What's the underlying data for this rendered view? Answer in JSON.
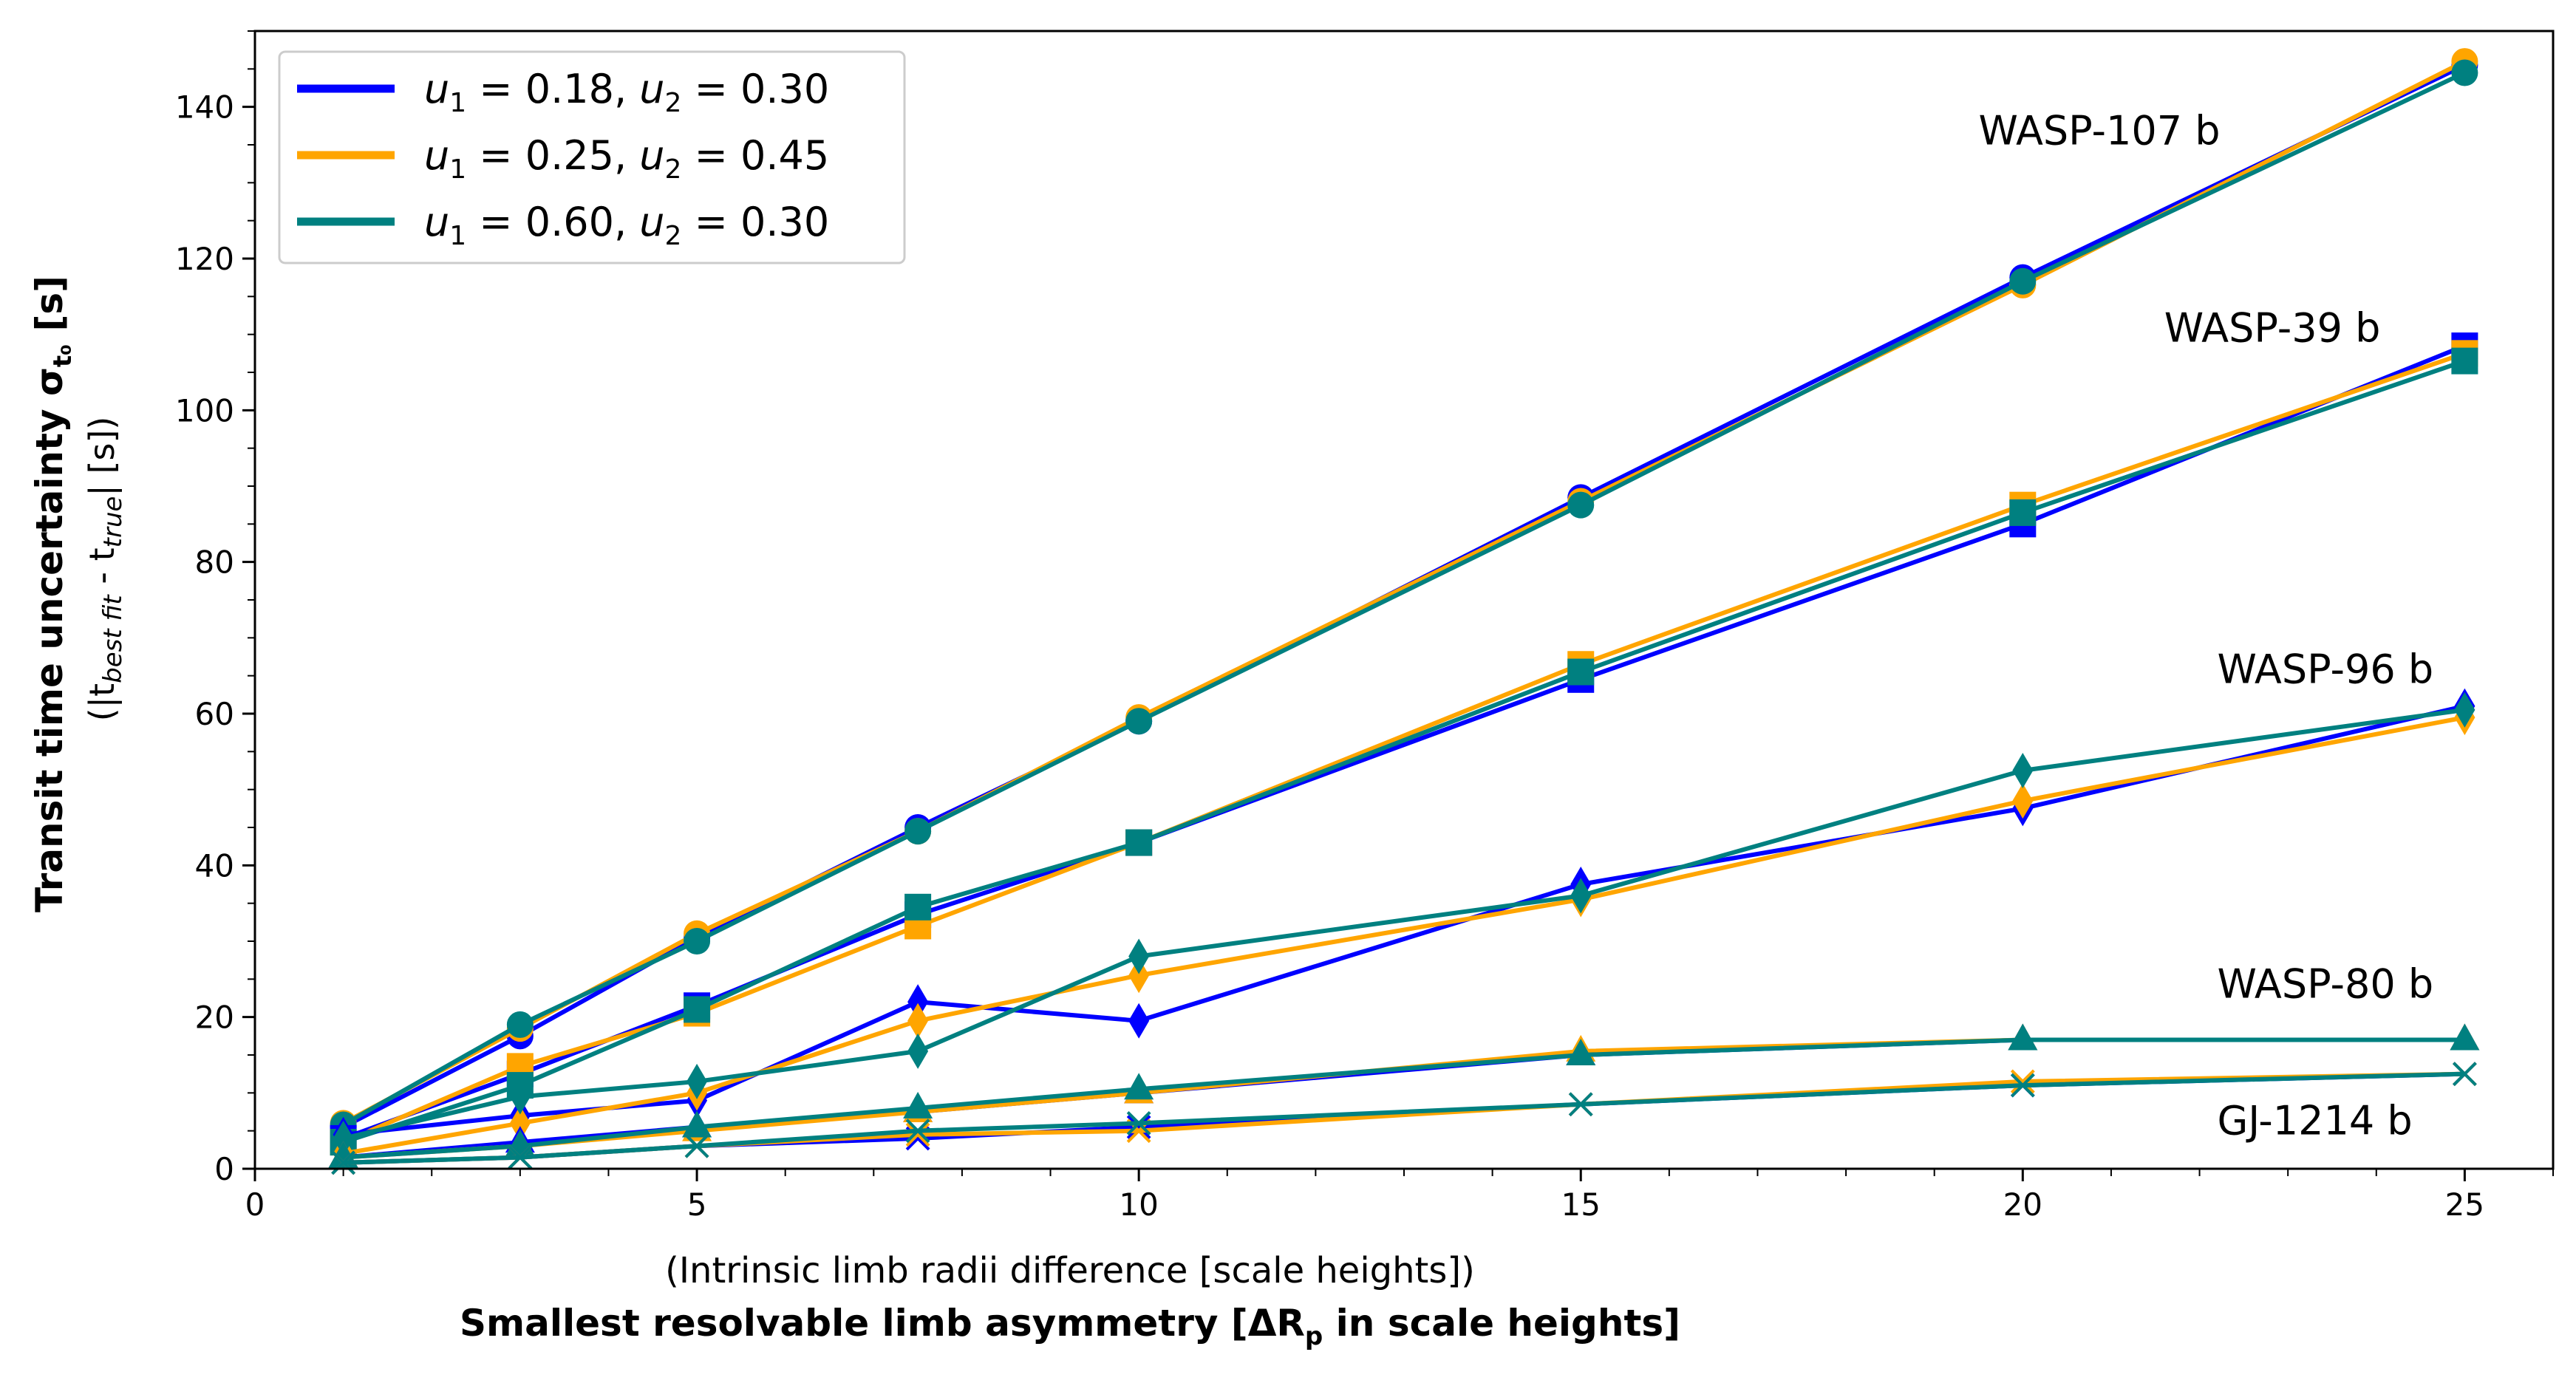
{
  "chart_data": {
    "type": "line",
    "xlim": [
      0,
      26
    ],
    "ylim": [
      0,
      150
    ],
    "xticks": [
      0,
      5,
      10,
      15,
      20,
      25
    ],
    "yticks": [
      0,
      20,
      40,
      60,
      80,
      100,
      120,
      140
    ],
    "grid": false,
    "xlabel": {
      "line1": "(Intrinsic limb radii difference [scale heights])",
      "line2_prefix": "Smallest resolvable limb asymmetry [ΔR",
      "line2_sub": "p",
      "line2_suffix": " in scale heights]"
    },
    "ylabel": {
      "line1_prefix": "Transit time uncertainty σ",
      "line1_sub": "t₀",
      "line1_suffix": " [s]",
      "line2_a": "(|t",
      "line2_sub1": "best fit",
      "line2_b": " - t",
      "line2_sub2": "true",
      "line2_c": "| [s])"
    },
    "legend": {
      "placement": "upper-left",
      "entries": [
        {
          "u1": "0.18",
          "u2": "0.30",
          "color": "#0000ff"
        },
        {
          "u1": "0.25",
          "u2": "0.45",
          "color": "#ffa500"
        },
        {
          "u1": "0.60",
          "u2": "0.30",
          "color": "#008080"
        }
      ]
    },
    "x": [
      1,
      3,
      5,
      7.5,
      10,
      15,
      20,
      25
    ],
    "planets": [
      {
        "name": "WASP-107 b",
        "marker": "circle",
        "series": [
          {
            "values": [
              5.5,
              17.5,
              30.5,
              45,
              59,
              88.5,
              117.5,
              145.5
            ]
          },
          {
            "values": [
              6,
              18.5,
              31,
              44.5,
              59.5,
              88,
              116.5,
              146
            ]
          },
          {
            "values": [
              5.8,
              19,
              30,
              44.5,
              59,
              87.5,
              117,
              144.5
            ]
          }
        ]
      },
      {
        "name": "WASP-39 b",
        "marker": "square",
        "series": [
          {
            "values": [
              4,
              12.5,
              21.5,
              33.5,
              43,
              64.5,
              85,
              108.5
            ]
          },
          {
            "values": [
              3.5,
              13.5,
              20.5,
              32,
              43,
              66.5,
              87.5,
              107.5
            ]
          },
          {
            "values": [
              3.5,
              11,
              21,
              34.5,
              43,
              65.5,
              86.5,
              106.5
            ]
          }
        ]
      },
      {
        "name": "WASP-96 b",
        "marker": "thin_diamond",
        "series": [
          {
            "values": [
              4.5,
              7,
              9,
              22,
              19.5,
              37.5,
              47.5,
              61
            ]
          },
          {
            "values": [
              2,
              6,
              10,
              19.5,
              25.5,
              35.5,
              48.5,
              59.5
            ]
          },
          {
            "values": [
              4,
              9.5,
              11.5,
              15.5,
              28,
              36,
              52.5,
              60.5
            ]
          }
        ]
      },
      {
        "name": "WASP-80 b",
        "marker": "triangle",
        "series": [
          {
            "values": [
              1.5,
              3.5,
              5.5,
              7.5,
              10,
              15,
              17,
              17
            ]
          },
          {
            "values": [
              1.5,
              3,
              5,
              7.5,
              10,
              15.5,
              17,
              17
            ]
          },
          {
            "values": [
              1.5,
              3,
              5.5,
              8,
              10.5,
              15,
              17,
              17
            ]
          }
        ]
      },
      {
        "name": "GJ-1214 b",
        "marker": "x",
        "series": [
          {
            "values": [
              0.8,
              1.5,
              3,
              4,
              5.5,
              8.5,
              11,
              12.5
            ]
          },
          {
            "values": [
              0.8,
              1.5,
              3,
              4.5,
              5,
              8.5,
              11.5,
              12.5
            ]
          },
          {
            "values": [
              0.8,
              1.5,
              3,
              5,
              6,
              8.5,
              11,
              12.5
            ]
          }
        ]
      }
    ],
    "annotations": [
      {
        "text": "WASP-107 b",
        "x": 19.5,
        "y": 137
      },
      {
        "text": "WASP-39 b",
        "x": 21.6,
        "y": 111
      },
      {
        "text": "WASP-96 b",
        "x": 22.2,
        "y": 66
      },
      {
        "text": "WASP-80 b",
        "x": 22.2,
        "y": 24.5
      },
      {
        "text": "GJ-1214 b",
        "x": 22.2,
        "y": 6.5
      }
    ]
  }
}
